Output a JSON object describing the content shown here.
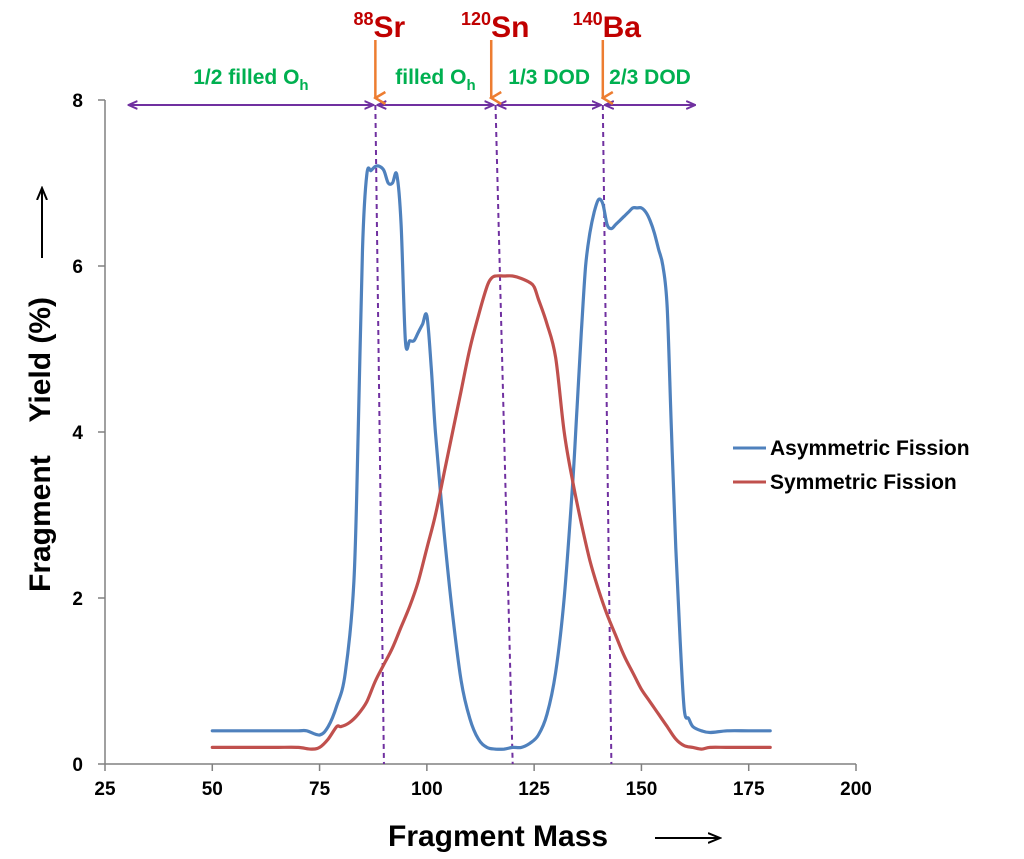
{
  "chart_data": {
    "type": "line",
    "xlabel": "Fragment Mass",
    "ylabel": "Fragment    Yield (%)",
    "xlim": [
      25,
      200
    ],
    "ylim": [
      0,
      8
    ],
    "xticks": [
      "25",
      "50",
      "75",
      "100",
      "125",
      "150",
      "175",
      "200"
    ],
    "yticks": [
      "0",
      "2",
      "4",
      "6",
      "8"
    ],
    "grid": false,
    "legend": "right",
    "series": [
      {
        "name": "Asymmetric Fission",
        "color": "#4F81BD",
        "x": [
          50,
          55,
          60,
          65,
          70,
          72,
          75,
          77,
          79,
          81,
          83,
          84,
          85,
          86,
          87,
          88,
          89,
          90,
          91,
          92,
          93,
          94,
          95,
          96,
          97,
          98,
          99,
          100,
          101,
          102,
          104,
          106,
          108,
          110,
          112,
          114,
          116,
          118,
          120,
          122,
          124,
          126,
          128,
          130,
          132,
          134,
          135,
          136,
          137,
          138,
          139,
          140,
          141,
          142,
          143,
          144,
          145,
          146,
          147,
          148,
          149,
          150,
          151,
          152,
          153,
          154,
          155,
          156,
          157,
          158,
          159,
          160,
          161,
          162,
          164,
          166,
          170,
          175,
          180
        ],
        "y": [
          0.4,
          0.4,
          0.4,
          0.4,
          0.4,
          0.4,
          0.35,
          0.45,
          0.7,
          1.1,
          2.2,
          4.0,
          6.2,
          7.1,
          7.15,
          7.2,
          7.2,
          7.15,
          7.0,
          7.0,
          7.1,
          6.5,
          5.1,
          5.1,
          5.1,
          5.2,
          5.3,
          5.4,
          4.8,
          4.0,
          2.8,
          1.8,
          1.0,
          0.55,
          0.3,
          0.2,
          0.18,
          0.18,
          0.2,
          0.2,
          0.25,
          0.35,
          0.6,
          1.1,
          2.0,
          3.4,
          4.3,
          5.2,
          6.0,
          6.4,
          6.65,
          6.8,
          6.75,
          6.5,
          6.45,
          6.5,
          6.55,
          6.6,
          6.65,
          6.7,
          6.7,
          6.7,
          6.65,
          6.55,
          6.4,
          6.2,
          6.0,
          5.5,
          4.0,
          2.6,
          1.5,
          0.65,
          0.55,
          0.45,
          0.4,
          0.38,
          0.4,
          0.4,
          0.4
        ]
      },
      {
        "name": "Symmetric Fission",
        "color": "#C0504D",
        "x": [
          50,
          55,
          60,
          65,
          70,
          73,
          75,
          77,
          79,
          80,
          82,
          84,
          86,
          88,
          90,
          92,
          94,
          96,
          98,
          100,
          102,
          104,
          106,
          108,
          110,
          112,
          114,
          115,
          116,
          118,
          120,
          122,
          124,
          125,
          126,
          128,
          130,
          132,
          134,
          136,
          138,
          140,
          142,
          144,
          146,
          148,
          150,
          152,
          154,
          156,
          158,
          160,
          162,
          164,
          166,
          170,
          175,
          180
        ],
        "y": [
          0.2,
          0.2,
          0.2,
          0.2,
          0.2,
          0.18,
          0.2,
          0.3,
          0.45,
          0.45,
          0.5,
          0.6,
          0.75,
          1.0,
          1.2,
          1.4,
          1.65,
          1.9,
          2.2,
          2.6,
          3.0,
          3.5,
          4.0,
          4.5,
          5.0,
          5.4,
          5.75,
          5.85,
          5.88,
          5.88,
          5.88,
          5.85,
          5.8,
          5.75,
          5.6,
          5.3,
          4.9,
          4.0,
          3.4,
          2.9,
          2.45,
          2.1,
          1.8,
          1.55,
          1.3,
          1.1,
          0.9,
          0.75,
          0.6,
          0.45,
          0.3,
          0.22,
          0.2,
          0.18,
          0.2,
          0.2,
          0.2,
          0.2
        ]
      }
    ],
    "markers": [
      {
        "mass_number": "88",
        "element": "Sr",
        "x": 88
      },
      {
        "mass_number": "120",
        "element": "Sn",
        "x": 115
      },
      {
        "mass_number": "140",
        "element": "Ba",
        "x": 141
      }
    ],
    "regions": [
      {
        "label": "1/2 filled O",
        "subscript": "h",
        "x_start": 30,
        "x_end": 88
      },
      {
        "label": "filled O",
        "subscript": "h",
        "x_start": 88,
        "x_end": 116
      },
      {
        "label": "1/3 DOD",
        "subscript": "",
        "x_start": 116,
        "x_end": 141
      },
      {
        "label": "2/3 DOD",
        "subscript": "",
        "x_start": 141,
        "x_end": 163
      }
    ],
    "dashed_lines": [
      {
        "x_top": 88,
        "x_bottom": 90
      },
      {
        "x_top": 116,
        "x_bottom": 120
      },
      {
        "x_top": 141,
        "x_bottom": 143
      }
    ],
    "colors": {
      "arrow_orange": "#ED7D31",
      "region_arrow": "#7030A0",
      "region_text": "#00B050",
      "marker_text": "#C00000"
    }
  }
}
